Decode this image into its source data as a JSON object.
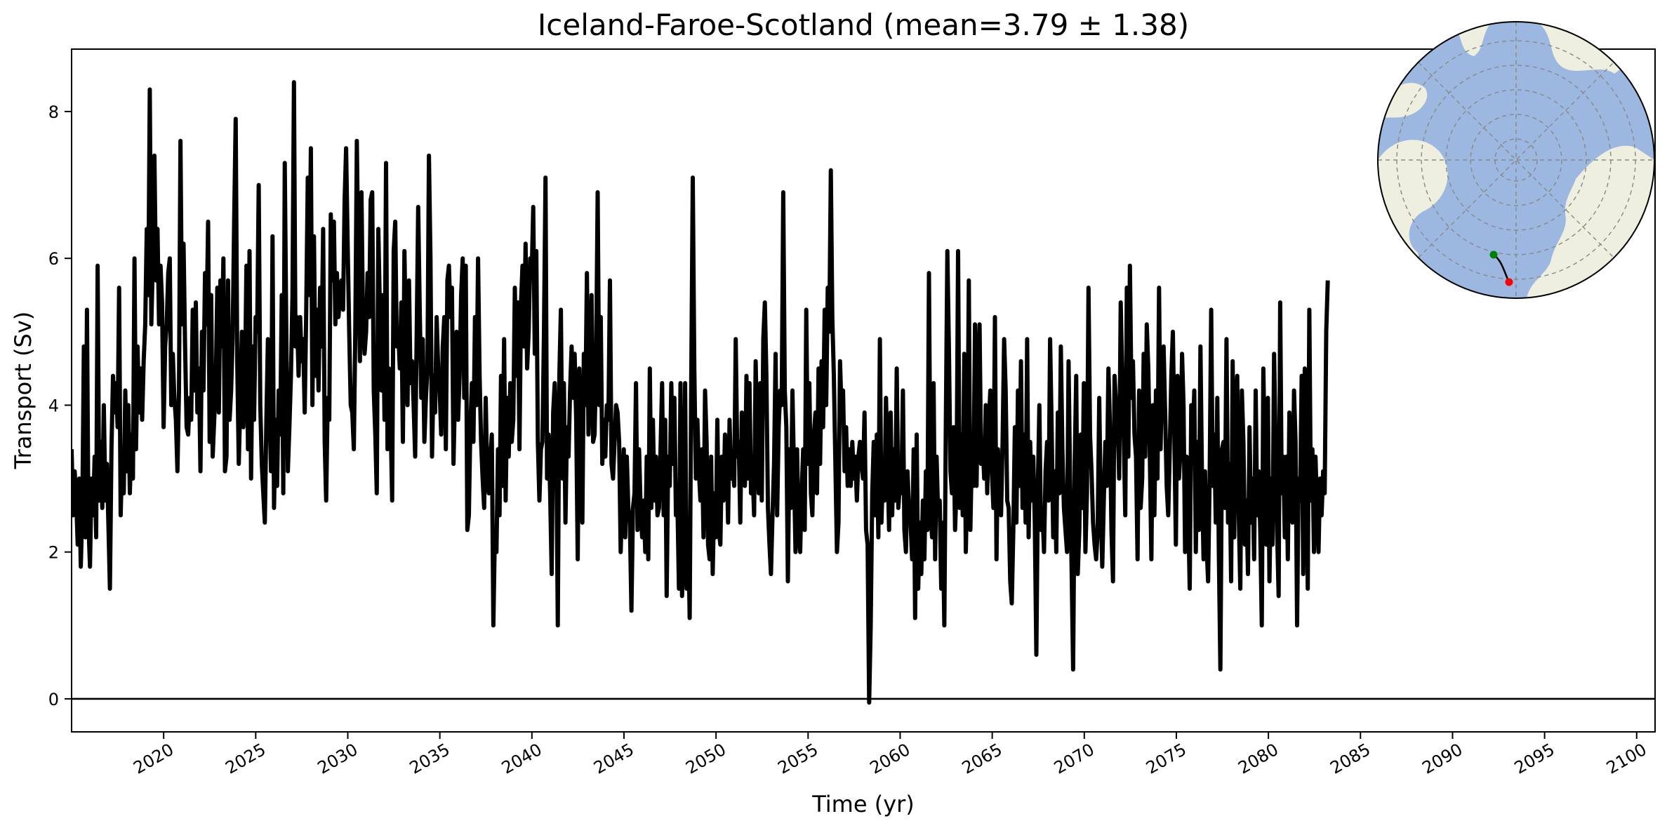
{
  "chart_data": {
    "type": "line",
    "title": "Iceland-Faroe-Scotland (mean=3.79 ± 1.38)",
    "xlabel": "Time (yr)",
    "ylabel": "Transport (Sv)",
    "xlim": [
      2015,
      2101
    ],
    "ylim": [
      -0.45,
      8.85
    ],
    "x_ticks": [
      2020,
      2025,
      2030,
      2035,
      2040,
      2045,
      2050,
      2055,
      2060,
      2065,
      2070,
      2075,
      2080,
      2085,
      2090,
      2095,
      2100
    ],
    "y_ticks": [
      0,
      2,
      4,
      6,
      8
    ],
    "reference_line_y": 0,
    "series": [
      {
        "color": "#000000",
        "x_start": 2015.0,
        "x_step": 0.0833,
        "values": [
          3.4,
          2.5,
          3.1,
          2.7,
          2.1,
          3.0,
          1.8,
          2.6,
          4.8,
          2.2,
          5.3,
          2.4,
          1.8,
          3.0,
          2.5,
          3.3,
          2.2,
          5.9,
          2.7,
          3.5,
          2.6,
          4.0,
          2.7,
          3.2,
          2.4,
          1.5,
          3.4,
          4.4,
          3.9,
          4.3,
          3.7,
          5.6,
          2.5,
          3.3,
          2.8,
          4.2,
          3.1,
          4.0,
          2.8,
          3.6,
          3.0,
          6.0,
          3.4,
          4.8,
          3.9,
          4.5,
          3.8,
          4.6,
          5.1,
          6.4,
          5.5,
          8.3,
          5.1,
          6.0,
          7.4,
          5.7,
          6.4,
          5.1,
          5.9,
          5.4,
          3.7,
          4.8,
          5.1,
          5.8,
          6.0,
          4.0,
          4.7,
          4.1,
          3.8,
          3.1,
          4.2,
          7.6,
          5.1,
          6.2,
          4.8,
          3.7,
          3.6,
          4.1,
          3.8,
          5.3,
          4.2,
          5.4,
          3.9,
          4.5,
          3.1,
          5.0,
          4.2,
          5.8,
          5.1,
          6.5,
          3.5,
          5.5,
          3.3,
          3.8,
          4.3,
          5.6,
          3.9,
          5.7,
          4.8,
          6.0,
          3.1,
          3.3,
          5.7,
          3.8,
          4.2,
          4.9,
          6.5,
          7.9,
          4.6,
          3.2,
          4.1,
          5.0,
          3.7,
          4.2,
          5.9,
          3.4,
          6.1,
          3.0,
          4.8,
          3.8,
          5.2,
          5.0,
          7.0,
          4.0,
          3.2,
          2.8,
          2.4,
          3.8,
          4.9,
          4.0,
          3.1,
          6.3,
          2.6,
          3.8,
          2.9,
          4.2,
          3.6,
          5.5,
          2.8,
          7.3,
          5.0,
          3.1,
          3.7,
          4.4,
          5.5,
          8.4,
          4.8,
          5.2,
          4.4,
          5.2,
          4.6,
          4.9,
          3.9,
          5.3,
          7.1,
          5.5,
          7.5,
          4.0,
          6.3,
          4.4,
          5.3,
          4.2,
          5.6,
          4.8,
          6.4,
          3.5,
          2.7,
          4.1,
          3.8,
          6.6,
          5.7,
          6.5,
          5.1,
          5.8,
          5.2,
          5.5,
          5.7,
          5.3,
          6.8,
          7.5,
          6.2,
          5.0,
          4.0,
          3.9,
          3.4,
          5.1,
          7.6,
          5.8,
          4.6,
          6.9,
          5.1,
          4.7,
          5.0,
          5.8,
          5.2,
          6.8,
          6.9,
          4.2,
          3.6,
          2.8,
          6.4,
          5.3,
          4.2,
          5.5,
          3.8,
          7.3,
          3.4,
          4.5,
          3.8,
          2.7,
          6.1,
          6.5,
          4.8,
          5.0,
          4.5,
          5.4,
          3.5,
          6.1,
          4.8,
          4.0,
          5.7,
          4.3,
          4.6,
          4.0,
          3.3,
          5.0,
          6.7,
          5.3,
          4.1,
          4.9,
          3.5,
          4.1,
          4.5,
          7.4,
          6.0,
          3.3,
          4.4,
          3.9,
          5.2,
          4.5,
          4.2,
          3.6,
          4.8,
          5.2,
          3.4,
          5.7,
          5.9,
          5.2,
          5.6,
          3.2,
          4.2,
          5.0,
          3.8,
          4.4,
          5.5,
          6.0,
          4.1,
          5.9,
          2.3,
          2.5,
          3.7,
          4.3,
          3.5,
          5.2,
          4.0,
          6.0,
          4.4,
          3.5,
          3.0,
          2.6,
          4.1,
          3.0,
          2.8,
          3.3,
          3.6,
          1.0,
          2.3,
          2.0,
          3.4,
          2.5,
          4.4,
          2.9,
          4.9,
          2.7,
          4.1,
          3.3,
          4.3,
          3.5,
          3.8,
          5.6,
          4.4,
          5.4,
          3.4,
          5.4,
          5.9,
          4.8,
          6.2,
          4.5,
          5.0,
          6.0,
          5.8,
          6.7,
          4.7,
          6.1,
          3.5,
          2.7,
          3.4,
          3.5,
          5.0,
          7.1,
          3.0,
          3.6,
          2.8,
          1.7,
          3.9,
          4.3,
          3.6,
          1.0,
          4.4,
          5.3,
          3.0,
          4.3,
          2.4,
          3.7,
          3.3,
          4.2,
          4.8,
          4.1,
          4.7,
          3.8,
          1.9,
          4.5,
          3.3,
          2.4,
          4.7,
          4.0,
          5.8,
          3.6,
          4.4,
          5.5,
          3.5,
          3.6,
          4.6,
          6.9,
          4.0,
          5.2,
          3.2,
          3.8,
          3.3,
          4.0,
          3.8,
          5.7,
          3.2,
          3.0,
          3.5,
          4.0,
          3.9,
          3.5,
          2.0,
          2.8,
          3.4,
          2.2,
          3.3,
          2.6,
          2.4,
          1.2,
          2.6,
          2.8,
          4.3,
          2.3,
          3.4,
          2.6,
          2.2,
          2.7,
          2.0,
          3.3,
          1.9,
          4.5,
          2.6,
          3.8,
          2.7,
          3.3,
          2.5,
          2.6,
          3.4,
          4.3,
          2.5,
          3.8,
          1.4,
          3.3,
          2.9,
          4.3,
          3.2,
          4.1,
          2.5,
          2.7,
          1.5,
          4.3,
          1.4,
          2.0,
          4.3,
          1.5,
          2.4,
          1.1,
          4.3,
          7.1,
          4.5,
          3.0,
          3.8,
          3.1,
          2.7,
          3.4,
          2.2,
          4.2,
          3.5,
          2.1,
          1.9,
          3.3,
          1.7,
          2.8,
          2.2,
          3.8,
          2.3,
          2.1,
          3.3,
          2.7,
          3.6,
          3.4,
          2.4,
          3.8,
          3.0,
          3.2,
          2.9,
          4.9,
          3.3,
          3.5,
          2.4,
          3.9,
          3.7,
          2.9,
          4.4,
          3.0,
          4.3,
          2.8,
          3.1,
          2.5,
          4.6,
          3.5,
          2.8,
          4.3,
          2.7,
          4.9,
          5.4,
          4.4,
          2.6,
          2.1,
          1.7,
          2.5,
          3.2,
          4.7,
          2.5,
          3.7,
          4.2,
          4.0,
          6.9,
          4.2,
          3.7,
          1.6,
          3.4,
          2.6,
          4.2,
          3.1,
          2.0,
          3.4,
          2.3,
          2.0,
          2.8,
          3.4,
          2.3,
          5.3,
          3.2,
          4.3,
          2.8,
          2.5,
          3.6,
          3.9,
          2.8,
          4.5,
          3.2,
          4.6,
          3.7,
          5.3,
          4.0,
          5.6,
          5.0,
          7.2,
          5.2,
          4.4,
          3.2,
          2.0,
          2.4,
          4.6,
          3.9,
          4.2,
          3.1,
          3.7,
          2.9,
          3.4,
          2.9,
          3.5,
          3.0,
          3.3,
          2.7,
          3.3,
          3.5,
          3.2,
          3.0,
          3.9,
          2.3,
          2.1,
          -0.05,
          1.0,
          2.8,
          3.5,
          2.5,
          3.6,
          2.2,
          4.9,
          2.4,
          3.1,
          2.7,
          4.1,
          3.2,
          2.3,
          3.9,
          2.5,
          3.4,
          2.7,
          4.5,
          2.6,
          2.9,
          2.8,
          4.2,
          2.3,
          2.0,
          3.1,
          2.6,
          2.4,
          1.9,
          3.4,
          1.1,
          3.6,
          1.5,
          2.4,
          1.7,
          2.7,
          1.9,
          3.1,
          2.3,
          5.8,
          2.6,
          2.2,
          4.3,
          1.9,
          3.3,
          2.5,
          2.7,
          1.5,
          2.4,
          1.0,
          3.7,
          6.1,
          4.8,
          3.1,
          2.8,
          3.7,
          2.3,
          2.9,
          6.1,
          2.6,
          3.6,
          2.5,
          4.7,
          2.0,
          3.0,
          5.7,
          2.3,
          3.4,
          2.9,
          5.1,
          2.9,
          4.3,
          5.1,
          3.2,
          3.5,
          3.0,
          4.0,
          2.8,
          3.7,
          4.2,
          3.1,
          2.6,
          5.2,
          1.9,
          3.4,
          2.8,
          2.5,
          3.5,
          4.9,
          4.2,
          2.7,
          2.6,
          1.6,
          1.3,
          2.3,
          3.7,
          2.4,
          4.2,
          2.9,
          4.6,
          2.6,
          3.6,
          2.4,
          4.9,
          2.2,
          3.5,
          2.7,
          3.3,
          2.4,
          0.6,
          2.9,
          4.0,
          2.3,
          2.6,
          2.0,
          3.1,
          3.5,
          2.7,
          4.9,
          3.7,
          2.2,
          3.1,
          2.0,
          3.9,
          2.8,
          4.8,
          3.4,
          2.6,
          2.3,
          2.0,
          4.6,
          3.0,
          1.8,
          0.4,
          3.2,
          4.4,
          1.7,
          2.3,
          3.6,
          2.6,
          4.3,
          2.0,
          2.8,
          5.6,
          3.6,
          3.1,
          2.4,
          2.1,
          1.9,
          2.3,
          4.1,
          2.6,
          1.8,
          2.7,
          3.5,
          2.9,
          4.5,
          3.7,
          2.3,
          1.6,
          4.4,
          4.0,
          3.8,
          3.0,
          5.4,
          4.4,
          3.6,
          2.5,
          5.6,
          3.3,
          5.9,
          4.1,
          4.6,
          3.6,
          3.3,
          1.9,
          4.2,
          2.6,
          3.0,
          4.7,
          3.3,
          5.1,
          4.5,
          3.3,
          1.9,
          4.0,
          2.5,
          4.2,
          3.0,
          5.6,
          3.4,
          4.5,
          4.8,
          3.9,
          2.9,
          2.5,
          3.4,
          4.4,
          5.0,
          3.6,
          2.1,
          4.4,
          3.0,
          3.4,
          4.7,
          4.0,
          2.0,
          3.3,
          2.6,
          1.5,
          4.0,
          3.5,
          4.2,
          2.0,
          3.5,
          2.3,
          4.8,
          3.0,
          1.9,
          3.1,
          2.1,
          1.6,
          3.0,
          5.3,
          2.9,
          3.6,
          2.4,
          4.1,
          2.0,
          0.4,
          3.4,
          3.5,
          2.6,
          4.9,
          2.4,
          3.2,
          1.6,
          4.6,
          2.2,
          3.9,
          4.4,
          2.5,
          1.5,
          4.2,
          3.5,
          2.1,
          2.7,
          1.7,
          3.7,
          2.4,
          3.0,
          1.9,
          4.2,
          2.5,
          3.1,
          2.3,
          1.0,
          4.5,
          3.2,
          2.1,
          4.1,
          1.6,
          3.0,
          2.1,
          4.7,
          3.5,
          2.3,
          1.4,
          5.4,
          2.8,
          3.3,
          2.2,
          3.3,
          1.9,
          3.9,
          3.4,
          2.4,
          4.2,
          3.5,
          1.0,
          3.0,
          2.7,
          4.4,
          1.7,
          4.5,
          3.2,
          1.5,
          5.3,
          2.7,
          3.4,
          2.0,
          3.3,
          2.6,
          2.0,
          3.0,
          2.5,
          3.1,
          2.8,
          5.0,
          5.7
        ]
      }
    ]
  },
  "inset_map": {
    "ocean_color": "#9cb8e0",
    "land_color": "#efefdf",
    "section_start_color": "#008000",
    "section_end_color": "#ff0000"
  }
}
